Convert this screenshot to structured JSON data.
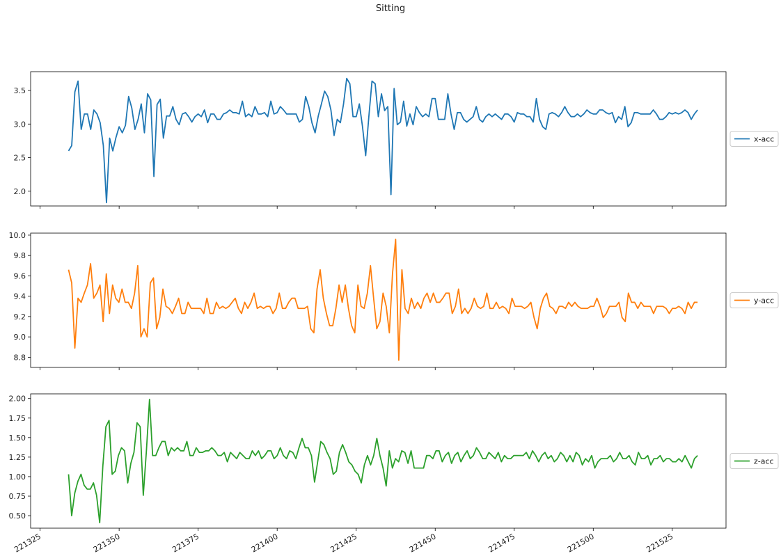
{
  "title": "Sitting",
  "chart_data": {
    "type": "line",
    "title": "Sitting",
    "x_ticks": [
      221325,
      221350,
      221375,
      221400,
      221425,
      221450,
      221475,
      221500,
      221525
    ],
    "x_range": [
      221322,
      221542
    ],
    "x_start": 221334,
    "x_end": 221533,
    "subplots": [
      {
        "name": "x-acc",
        "color": "#1f77b4",
        "ylim": [
          1.78,
          3.78
        ],
        "y_ticks": [
          2.0,
          2.5,
          3.0,
          3.5
        ],
        "y_tick_labels": [
          "2.0",
          "2.5",
          "3.0",
          "3.5"
        ],
        "legend": "x-acc",
        "values": [
          2.6,
          2.68,
          3.48,
          3.64,
          2.92,
          3.15,
          3.15,
          2.92,
          3.21,
          3.15,
          3.02,
          2.68,
          1.83,
          2.79,
          2.6,
          2.8,
          2.96,
          2.87,
          2.98,
          3.41,
          3.24,
          2.92,
          3.07,
          3.3,
          2.87,
          3.45,
          3.36,
          2.22,
          3.29,
          3.37,
          2.79,
          3.12,
          3.12,
          3.26,
          3.07,
          2.99,
          3.15,
          3.17,
          3.11,
          3.03,
          3.11,
          3.15,
          3.11,
          3.21,
          3.02,
          3.15,
          3.15,
          3.07,
          3.07,
          3.15,
          3.17,
          3.21,
          3.17,
          3.17,
          3.15,
          3.34,
          3.11,
          3.15,
          3.11,
          3.26,
          3.15,
          3.15,
          3.17,
          3.11,
          3.34,
          3.15,
          3.17,
          3.26,
          3.21,
          3.15,
          3.15,
          3.15,
          3.15,
          3.03,
          3.07,
          3.41,
          3.26,
          3.02,
          2.87,
          3.12,
          3.3,
          3.49,
          3.41,
          3.21,
          2.83,
          3.07,
          3.02,
          3.3,
          3.68,
          3.6,
          3.11,
          3.11,
          3.3,
          2.96,
          2.53,
          3.11,
          3.64,
          3.6,
          3.11,
          3.45,
          3.2,
          3.26,
          1.95,
          3.53,
          2.99,
          3.03,
          3.34,
          2.97,
          3.15,
          2.99,
          3.26,
          3.17,
          3.11,
          3.15,
          3.11,
          3.38,
          3.38,
          3.07,
          3.07,
          3.07,
          3.45,
          3.15,
          2.92,
          3.17,
          3.17,
          3.07,
          3.03,
          3.07,
          3.11,
          3.26,
          3.07,
          3.03,
          3.11,
          3.15,
          3.11,
          3.15,
          3.11,
          3.07,
          3.15,
          3.15,
          3.11,
          3.03,
          3.17,
          3.15,
          3.15,
          3.11,
          3.11,
          3.03,
          3.38,
          3.07,
          2.96,
          2.92,
          3.15,
          3.17,
          3.15,
          3.11,
          3.17,
          3.26,
          3.17,
          3.11,
          3.11,
          3.15,
          3.11,
          3.15,
          3.21,
          3.17,
          3.15,
          3.15,
          3.21,
          3.21,
          3.17,
          3.15,
          3.17,
          3.02,
          3.11,
          3.07,
          3.26,
          2.96,
          3.02,
          3.17,
          3.17,
          3.15,
          3.15,
          3.15,
          3.15,
          3.21,
          3.15,
          3.07,
          3.07,
          3.11,
          3.17,
          3.15,
          3.17,
          3.15,
          3.17,
          3.21,
          3.17,
          3.07,
          3.15,
          3.21
        ]
      },
      {
        "name": "y-acc",
        "color": "#ff7f0e",
        "ylim": [
          8.7,
          10.02
        ],
        "y_ticks": [
          8.8,
          9.0,
          9.2,
          9.4,
          9.6,
          9.8,
          10.0
        ],
        "y_tick_labels": [
          "8.8",
          "9.0",
          "9.2",
          "9.4",
          "9.6",
          "9.8",
          "10.0"
        ],
        "legend": "y-acc",
        "values": [
          9.66,
          9.53,
          8.89,
          9.38,
          9.34,
          9.43,
          9.51,
          9.72,
          9.38,
          9.43,
          9.51,
          9.15,
          9.62,
          9.23,
          9.51,
          9.38,
          9.34,
          9.47,
          9.34,
          9.34,
          9.28,
          9.43,
          9.7,
          9.0,
          9.08,
          9.0,
          9.53,
          9.58,
          9.08,
          9.19,
          9.47,
          9.3,
          9.28,
          9.23,
          9.3,
          9.38,
          9.23,
          9.23,
          9.34,
          9.28,
          9.28,
          9.28,
          9.28,
          9.23,
          9.38,
          9.23,
          9.23,
          9.34,
          9.28,
          9.3,
          9.28,
          9.3,
          9.34,
          9.38,
          9.28,
          9.23,
          9.34,
          9.28,
          9.34,
          9.43,
          9.28,
          9.3,
          9.28,
          9.3,
          9.3,
          9.23,
          9.28,
          9.43,
          9.28,
          9.28,
          9.34,
          9.38,
          9.38,
          9.28,
          9.28,
          9.28,
          9.3,
          9.08,
          9.04,
          9.47,
          9.66,
          9.38,
          9.23,
          9.11,
          9.11,
          9.28,
          9.51,
          9.34,
          9.51,
          9.28,
          9.11,
          9.04,
          9.51,
          9.3,
          9.28,
          9.43,
          9.7,
          9.38,
          9.08,
          9.15,
          9.43,
          9.3,
          9.04,
          9.62,
          9.96,
          8.77,
          9.66,
          9.28,
          9.23,
          9.38,
          9.28,
          9.34,
          9.28,
          9.38,
          9.43,
          9.34,
          9.43,
          9.34,
          9.34,
          9.38,
          9.43,
          9.43,
          9.23,
          9.3,
          9.47,
          9.23,
          9.28,
          9.23,
          9.28,
          9.38,
          9.3,
          9.28,
          9.3,
          9.43,
          9.28,
          9.28,
          9.34,
          9.28,
          9.3,
          9.28,
          9.23,
          9.38,
          9.3,
          9.3,
          9.3,
          9.28,
          9.3,
          9.34,
          9.19,
          9.08,
          9.28,
          9.38,
          9.43,
          9.3,
          9.28,
          9.23,
          9.3,
          9.3,
          9.28,
          9.34,
          9.3,
          9.34,
          9.3,
          9.28,
          9.28,
          9.28,
          9.3,
          9.3,
          9.38,
          9.3,
          9.19,
          9.23,
          9.3,
          9.3,
          9.3,
          9.34,
          9.19,
          9.15,
          9.43,
          9.34,
          9.34,
          9.28,
          9.34,
          9.3,
          9.3,
          9.3,
          9.23,
          9.3,
          9.3,
          9.3,
          9.28,
          9.23,
          9.28,
          9.28,
          9.3,
          9.28,
          9.23,
          9.34,
          9.28,
          9.34,
          9.34
        ]
      },
      {
        "name": "z-acc",
        "color": "#2ca02c",
        "ylim": [
          0.34,
          2.06
        ],
        "y_ticks": [
          0.5,
          0.75,
          1.0,
          1.25,
          1.5,
          1.75,
          2.0
        ],
        "y_tick_labels": [
          "0.50",
          "0.75",
          "1.00",
          "1.25",
          "1.50",
          "1.75",
          "2.00"
        ],
        "legend": "z-acc",
        "values": [
          1.03,
          0.5,
          0.79,
          0.94,
          1.03,
          0.89,
          0.84,
          0.84,
          0.92,
          0.76,
          0.41,
          1.13,
          1.64,
          1.72,
          1.03,
          1.07,
          1.27,
          1.37,
          1.33,
          0.92,
          1.17,
          1.31,
          1.69,
          1.64,
          0.76,
          1.33,
          1.99,
          1.27,
          1.27,
          1.37,
          1.45,
          1.45,
          1.27,
          1.37,
          1.33,
          1.37,
          1.33,
          1.33,
          1.45,
          1.27,
          1.27,
          1.37,
          1.31,
          1.31,
          1.33,
          1.33,
          1.37,
          1.33,
          1.27,
          1.27,
          1.31,
          1.19,
          1.31,
          1.27,
          1.23,
          1.31,
          1.27,
          1.23,
          1.23,
          1.33,
          1.27,
          1.33,
          1.23,
          1.27,
          1.33,
          1.33,
          1.23,
          1.27,
          1.37,
          1.27,
          1.23,
          1.33,
          1.31,
          1.23,
          1.37,
          1.49,
          1.37,
          1.37,
          1.27,
          0.93,
          1.19,
          1.45,
          1.41,
          1.31,
          1.23,
          1.03,
          1.07,
          1.31,
          1.41,
          1.31,
          1.19,
          1.15,
          1.07,
          1.03,
          0.92,
          1.15,
          1.27,
          1.15,
          1.27,
          1.49,
          1.27,
          1.11,
          0.88,
          1.33,
          1.11,
          1.23,
          1.19,
          1.33,
          1.31,
          1.17,
          1.33,
          1.11,
          1.11,
          1.11,
          1.11,
          1.27,
          1.27,
          1.23,
          1.33,
          1.33,
          1.19,
          1.27,
          1.31,
          1.17,
          1.27,
          1.31,
          1.19,
          1.27,
          1.33,
          1.23,
          1.27,
          1.37,
          1.31,
          1.23,
          1.23,
          1.31,
          1.27,
          1.23,
          1.31,
          1.19,
          1.27,
          1.23,
          1.23,
          1.27,
          1.27,
          1.27,
          1.27,
          1.31,
          1.23,
          1.33,
          1.27,
          1.19,
          1.27,
          1.31,
          1.23,
          1.27,
          1.19,
          1.23,
          1.31,
          1.27,
          1.19,
          1.27,
          1.19,
          1.31,
          1.27,
          1.15,
          1.23,
          1.19,
          1.27,
          1.11,
          1.19,
          1.23,
          1.23,
          1.23,
          1.27,
          1.19,
          1.23,
          1.31,
          1.23,
          1.23,
          1.27,
          1.19,
          1.15,
          1.31,
          1.23,
          1.23,
          1.27,
          1.15,
          1.23,
          1.23,
          1.27,
          1.19,
          1.23,
          1.23,
          1.19,
          1.19,
          1.23,
          1.19,
          1.27,
          1.19,
          1.11,
          1.23,
          1.27
        ]
      }
    ]
  }
}
